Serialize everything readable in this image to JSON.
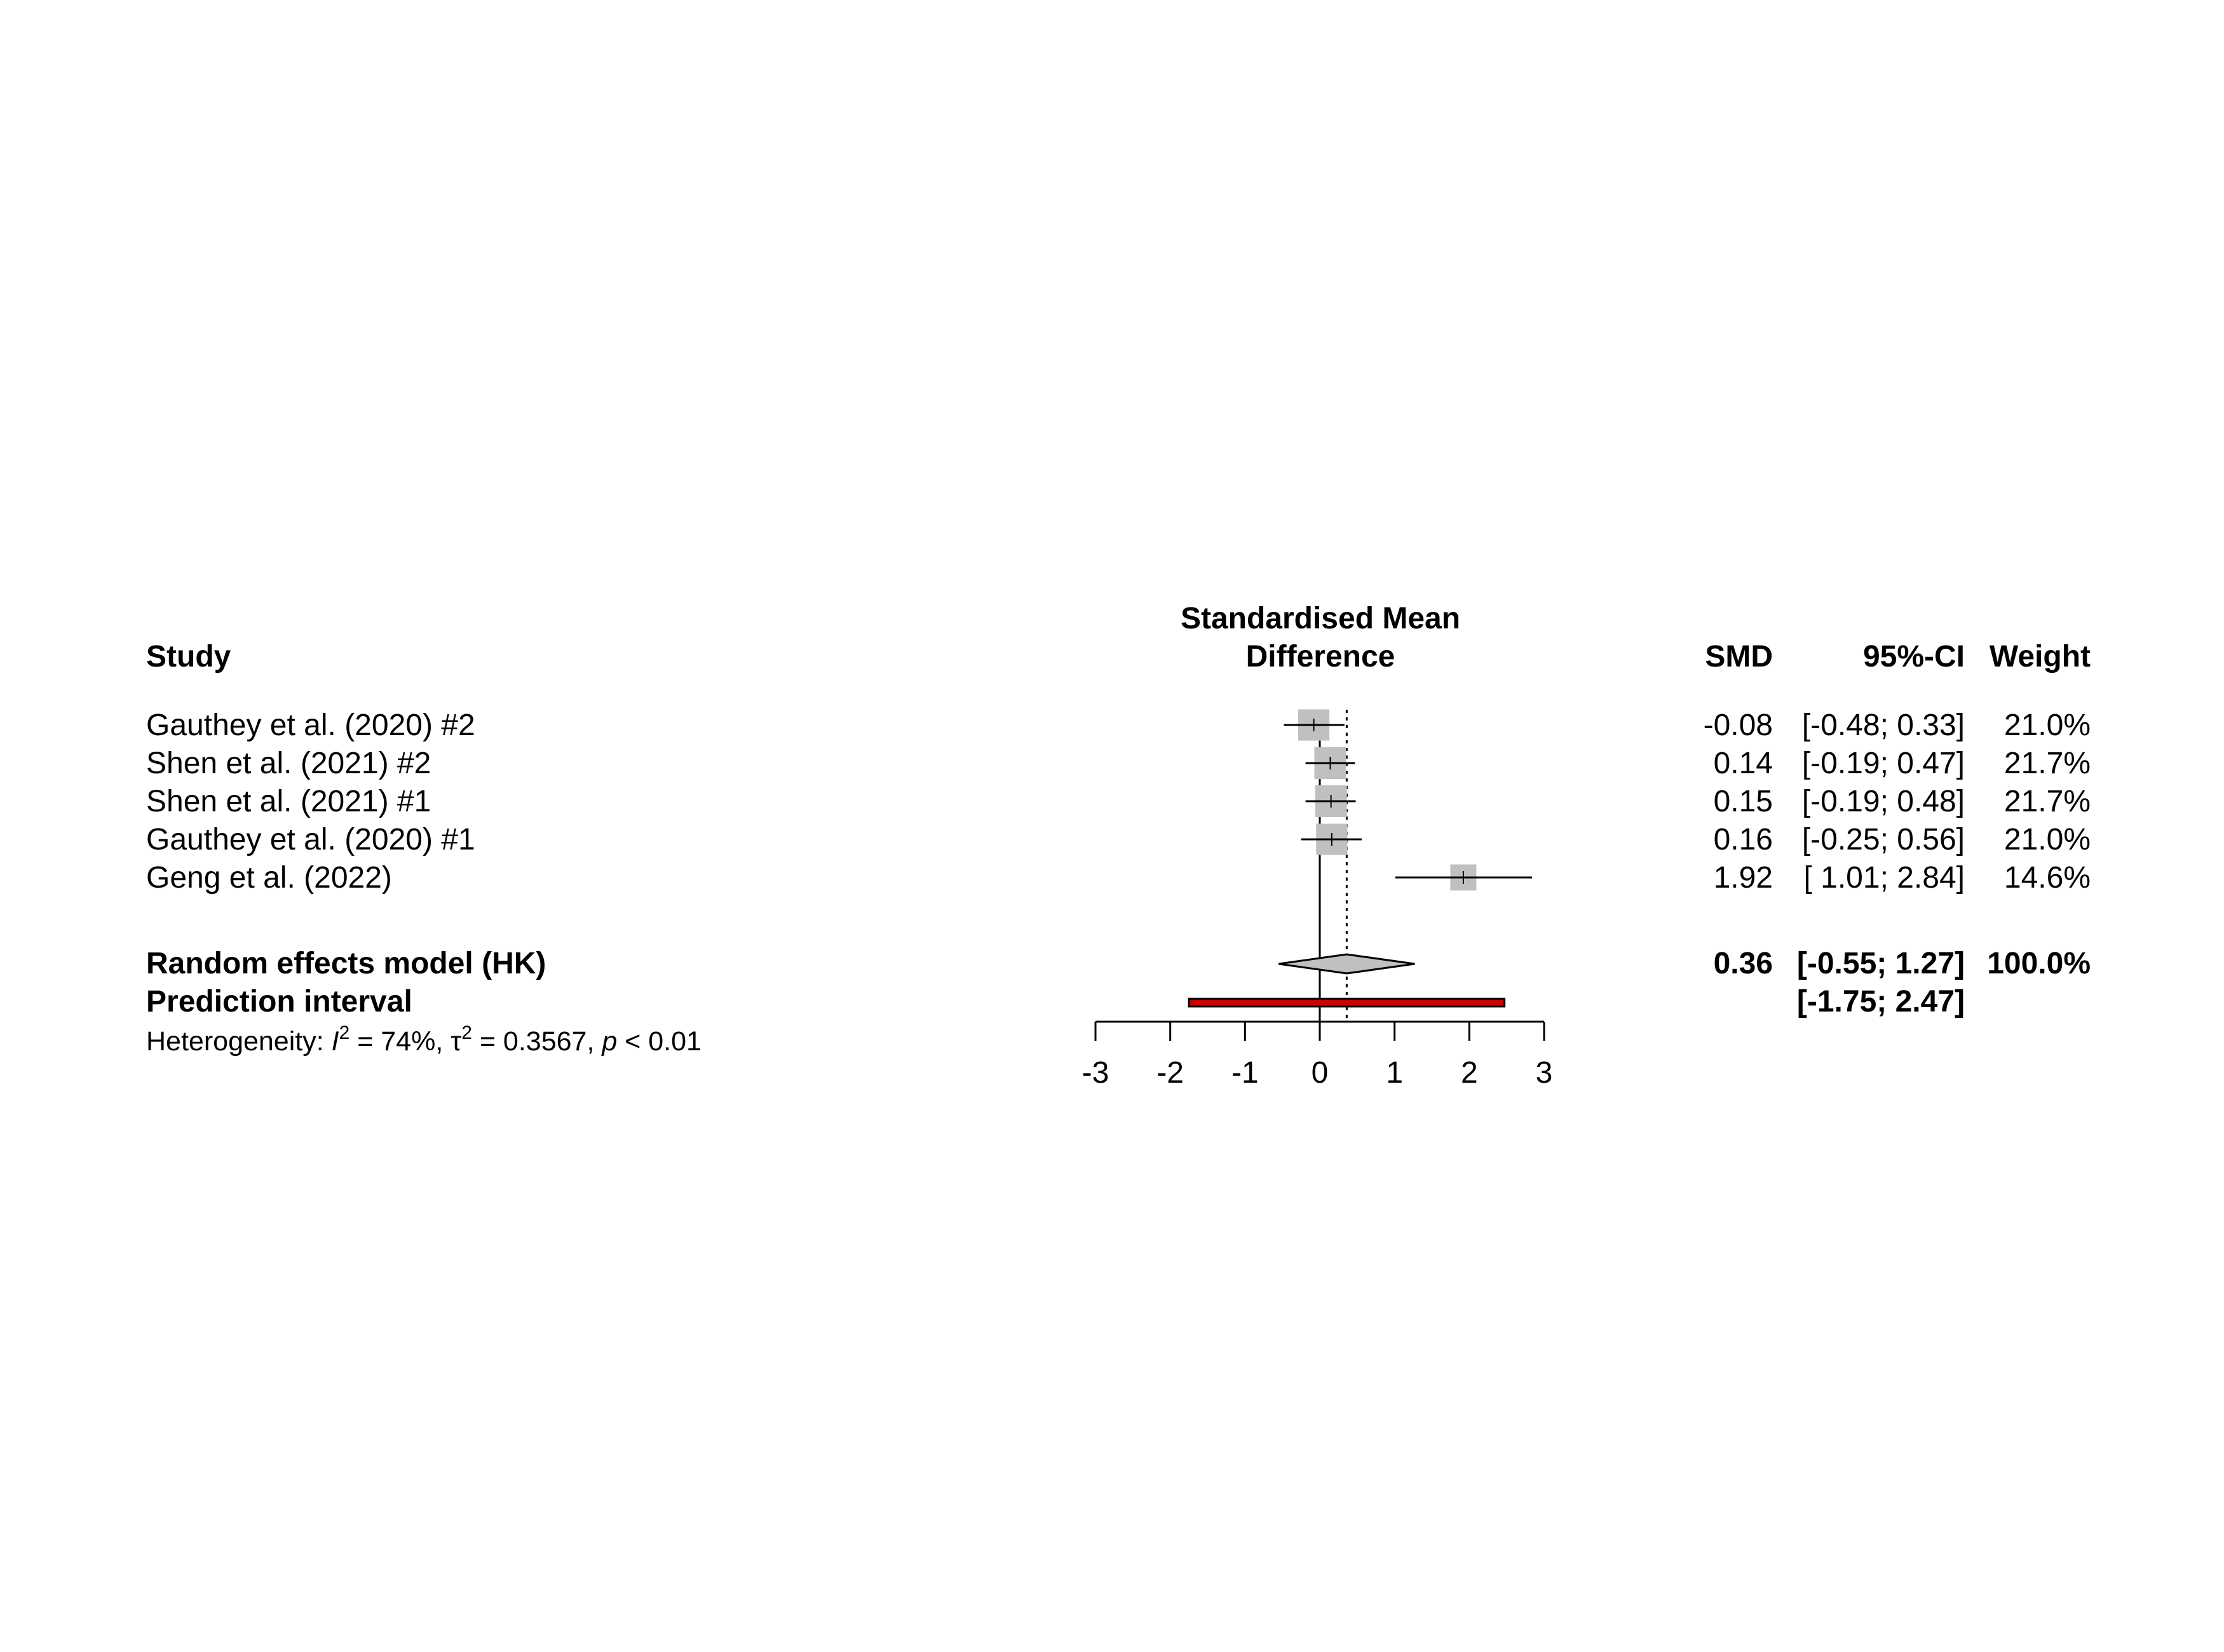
{
  "chart_data": {
    "type": "forest",
    "title": "Standardised Mean Difference",
    "title_lines": [
      "Standardised Mean",
      "Difference"
    ],
    "columns": {
      "study": "Study",
      "effect": "SMD",
      "ci": "95%-CI",
      "weight": "Weight"
    },
    "xlim": [
      -3,
      3
    ],
    "ticks": [
      -3,
      -2,
      -1,
      0,
      1,
      2,
      3
    ],
    "tick_labels": [
      "-3",
      "-2",
      "-1",
      "0",
      "1",
      "2",
      "3"
    ],
    "null_line": 0,
    "studies": [
      {
        "label": "Gauthey et al. (2020) #2",
        "smd": -0.08,
        "lower": -0.48,
        "upper": 0.33,
        "smd_text": "-0.08",
        "ci_text": "[-0.48; 0.33]",
        "weight_text": "21.0%",
        "weight": 21.0
      },
      {
        "label": "Shen et al. (2021) #2",
        "smd": 0.14,
        "lower": -0.19,
        "upper": 0.47,
        "smd_text": "0.14",
        "ci_text": "[-0.19; 0.47]",
        "weight_text": "21.7%",
        "weight": 21.7
      },
      {
        "label": "Shen et al. (2021) #1",
        "smd": 0.15,
        "lower": -0.19,
        "upper": 0.48,
        "smd_text": "0.15",
        "ci_text": "[-0.19; 0.48]",
        "weight_text": "21.7%",
        "weight": 21.7
      },
      {
        "label": "Gauthey et al. (2020) #1",
        "smd": 0.16,
        "lower": -0.25,
        "upper": 0.56,
        "smd_text": "0.16",
        "ci_text": "[-0.25; 0.56]",
        "weight_text": "21.0%",
        "weight": 21.0
      },
      {
        "label": "Geng et al. (2022)",
        "smd": 1.92,
        "lower": 1.01,
        "upper": 2.84,
        "smd_text": "1.92",
        "ci_text": "[ 1.01; 2.84]",
        "weight_text": "14.6%",
        "weight": 14.6
      }
    ],
    "summary": {
      "label": "Random effects model (HK)",
      "smd": 0.36,
      "lower": -0.55,
      "upper": 1.27,
      "smd_text": "0.36",
      "ci_text": "[-0.55; 1.27]",
      "weight_text": "100.0%"
    },
    "prediction": {
      "label": "Prediction interval",
      "lower": -1.75,
      "upper": 2.47,
      "ci_text": "[-1.75; 2.47]",
      "color": "#cc0000"
    },
    "heterogeneity": {
      "prefix": "Heterogeneity: ",
      "i2_symbol": "I",
      "i2_value": " = 74%, ",
      "tau_symbol": "τ",
      "tau_value": " = 0.3567, ",
      "p_symbol": "p",
      "p_value": " < 0.01",
      "superscript": "2"
    },
    "square_color": "#c0c0c0",
    "diamond_color": "#c0c0c0"
  }
}
